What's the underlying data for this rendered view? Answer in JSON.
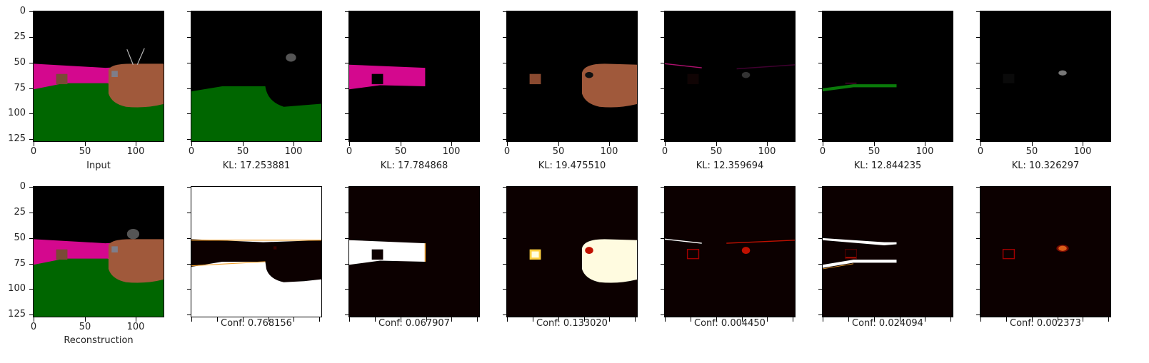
{
  "axis_ticks": [
    "0",
    "25",
    "50",
    "75",
    "100",
    "125"
  ],
  "axis_ticks_x": [
    "0",
    "50",
    "100"
  ],
  "top_row": [
    {
      "caption": "Input",
      "image": "input-scene"
    },
    {
      "caption": "KL: 17.253881",
      "image": "slot-1-ground"
    },
    {
      "caption": "KL: 17.784868",
      "image": "slot-2-wall"
    },
    {
      "caption": "KL: 19.475510",
      "image": "slot-3-objects"
    },
    {
      "caption": "KL: 12.359694",
      "image": "slot-4-edge"
    },
    {
      "caption": "KL: 12.844235",
      "image": "slot-5-edge"
    },
    {
      "caption": "KL: 10.326297",
      "image": "slot-6-spot"
    }
  ],
  "bottom_row": [
    {
      "caption": "Reconstruction",
      "image": "reconstruction-scene"
    },
    {
      "caption": "Conf: 0.768156",
      "image": "mask-1"
    },
    {
      "caption": "Conf: 0.067907",
      "image": "mask-2"
    },
    {
      "caption": "Conf: 0.133020",
      "image": "mask-3"
    },
    {
      "caption": "Conf: 0.004450",
      "image": "mask-4"
    },
    {
      "caption": "Conf: 0.024094",
      "image": "mask-5"
    },
    {
      "caption": "Conf: 0.002373",
      "image": "mask-6"
    }
  ],
  "colors": {
    "sky": "#000000",
    "wall_magenta": "#d4088e",
    "ground_green": "#006600",
    "object_brown": "#a0593b",
    "heat_dark": "#0c0000",
    "heat_white": "#ffffff"
  }
}
